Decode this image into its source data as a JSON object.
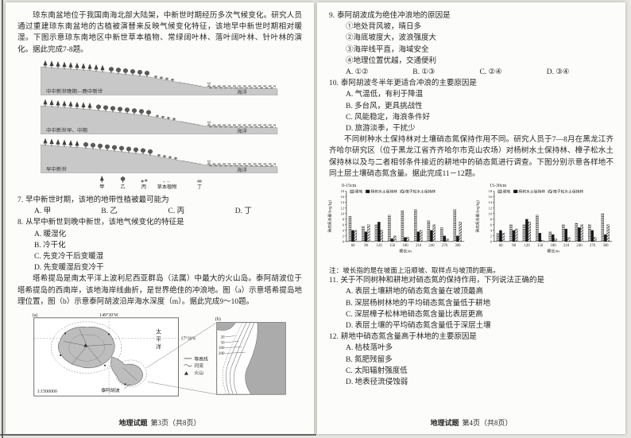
{
  "meta": {
    "paper_color": "#fcfcfa",
    "ink_color": "#262626",
    "figure_gray": "#c8c8c8",
    "land_gray": "#ababab"
  },
  "left_page": {
    "intro1": "琼东南盆地位于我国南海北部大陆架，中新世时期经历多次气候变化。研究人员通过重建琼东南盆地的古植被演替来反映气候变化特征，该地早中新世时期相对暖湿。下图示意琼东南地区中新世草本植物、常绿阔叶林、落叶阔叶林、针叶林的演化。据此完成7-8题。",
    "figure1": {
      "panels": [
        {
          "era": "中中新世晚期—晚中新世",
          "sea": "海洋"
        },
        {
          "era": "中中新世早、中期",
          "sea": "海洋"
        },
        {
          "era": "早中新世",
          "sea": "海洋"
        }
      ],
      "legend": {
        "jia": "甲",
        "yi": "乙",
        "bing": "丙",
        "herb": "草本植物",
        "ding": "丁"
      }
    },
    "q7": {
      "num": "7.",
      "stem": "早中新世时期，该地的地带性植被最可能为",
      "options": [
        "A. 甲",
        "B. 乙",
        "C. 丙",
        "D. 丁"
      ]
    },
    "q8": {
      "num": "8.",
      "stem": "从早中新世到晚中新世，该地气候变化的特征是",
      "options": [
        "A. 暖湿化",
        "B. 冷干化",
        "C. 先变冷干后变暖湿",
        "D. 先变暖湿后变冷干"
      ]
    },
    "intro2": "塔希提岛是南太平洋上波利尼西亚群岛（法属）中最大的火山岛。泰阿胡波位于塔希提岛的西南岸，该地海岸线曲折，是世界绝佳的冲浪地。图（a）示意塔希提岛地理位置，图（b）示意泰阿胡波沿岸海水深度（m）。据此完成9～10题。",
    "map": {
      "a_label": "(a)",
      "lon": "149°30′W",
      "lat": "17°30′S",
      "ocean": "太平洋",
      "site": "泰阿胡波",
      "scale": "1:1500000",
      "legend": [
        {
          "sym": "contour-line",
          "label": "等高线"
        },
        {
          "sym": "river",
          "label": "河流"
        },
        {
          "sym": "volcano",
          "label": "火山"
        }
      ],
      "b_label": "(b)",
      "depths": [
        "20",
        "50",
        "100",
        "200"
      ]
    },
    "footer": {
      "title": "地理试题",
      "page": "第3页（共8页）"
    }
  },
  "right_page": {
    "q9": {
      "num": "9.",
      "stem": "泰阿胡波成为绝佳冲浪地的原因是",
      "items": [
        "①地处背风坡，晴日多",
        "②海底坡度大，波浪强度大",
        "③海岸线平直，海域安全",
        "④地理位置优越，交通便利"
      ],
      "options": [
        "A. ①②",
        "B. ①③",
        "C. ②④",
        "D. ③④"
      ]
    },
    "q10": {
      "num": "10.",
      "stem": "泰阿胡波冬半年更适合冲浪的主要原因是",
      "options": [
        "A. 气温低，有利于降温",
        "B. 多台风，更具挑战性",
        "C. 风能稳定，海浪条件好",
        "D. 旅游淡季，干扰少"
      ]
    },
    "intro": "不同树种水土保持林对土壤硝态氮保持作用不同。研究人员于7—8月在黑龙江齐齐哈尔研究区（位于黑龙江省齐齐哈尔市克山农场）对杨树水土保持林、樟子松水土保持林以及与二者相邻条件接近的耕地中的硝态氮进行调查。下图分别示意各样地不同土层土壤硝态氮含量。据此完成11－12题。",
    "note": "注：坡长指的是在坡面上沿顺坡、取样点与坡顶的距离。",
    "q11": {
      "num": "11.",
      "stem": "关于不同树种和耕地对硝态氮的保持作用，下列说法正确的是",
      "options": [
        "A. 表层土壤耕地的硝态氮含量在坡顶最高",
        "B. 深层杨树林地的平均硝态氮含量低于耕地",
        "C. 深层樟子松林地硝态氮含量比表层更高",
        "D. 表层土壤的平均硝态氮含量低于深层土壤"
      ]
    },
    "q12": {
      "num": "12.",
      "stem": "耕地中硝态氮含量高于林地的主要原因是",
      "options": [
        "A. 枯枝落叶多",
        "B. 氮肥残留多",
        "C. 太阳辐射强度低",
        "D. 地表径流侵蚀弱"
      ]
    },
    "footer": {
      "title": "地理试题",
      "page": "第4页（共8页）"
    }
  },
  "chart_data": [
    {
      "type": "bar",
      "title": "0-15cm",
      "categories": [
        60,
        90,
        120,
        150,
        180,
        210,
        240,
        270,
        300
      ],
      "series": [
        {
          "name": "耕地",
          "values": [
            9,
            5.5,
            6,
            9.5,
            11,
            11.5,
            7.5,
            5,
            11.5
          ]
        },
        {
          "name": "杨树水土保持林",
          "values": [
            4,
            3.5,
            7,
            1,
            1.5,
            3.5,
            4,
            2,
            2
          ]
        },
        {
          "name": "樟子松水土保持林",
          "values": [
            4,
            6,
            4,
            2,
            1.5,
            4,
            6,
            1,
            7
          ]
        }
      ],
      "xlabel": "坡长/m",
      "ylabel": "硝态氮含量/(mg/kg)",
      "ylim": [
        0,
        18
      ],
      "ystep": 2,
      "legend_position": "top",
      "grid": false
    },
    {
      "type": "bar",
      "title": "15-30cm",
      "categories": [
        60,
        90,
        120,
        150,
        180,
        210,
        240,
        270,
        300
      ],
      "series": [
        {
          "name": "耕地",
          "values": [
            3,
            6,
            6,
            9.5,
            3.5,
            6,
            6.5,
            6,
            10
          ]
        },
        {
          "name": "杨树水土保持林",
          "values": [
            4,
            4,
            8,
            3,
            2.5,
            4.5,
            5,
            4,
            2.5
          ]
        },
        {
          "name": "樟子松水土保持林",
          "values": [
            3,
            4.5,
            7,
            0.5,
            1,
            1.5,
            6,
            1.5,
            6
          ]
        }
      ],
      "xlabel": "坡长/m",
      "ylabel": "硝态氮含量/(mg/kg)",
      "ylim": [
        0,
        18
      ],
      "ystep": 2,
      "legend_position": "top",
      "grid": false
    }
  ]
}
